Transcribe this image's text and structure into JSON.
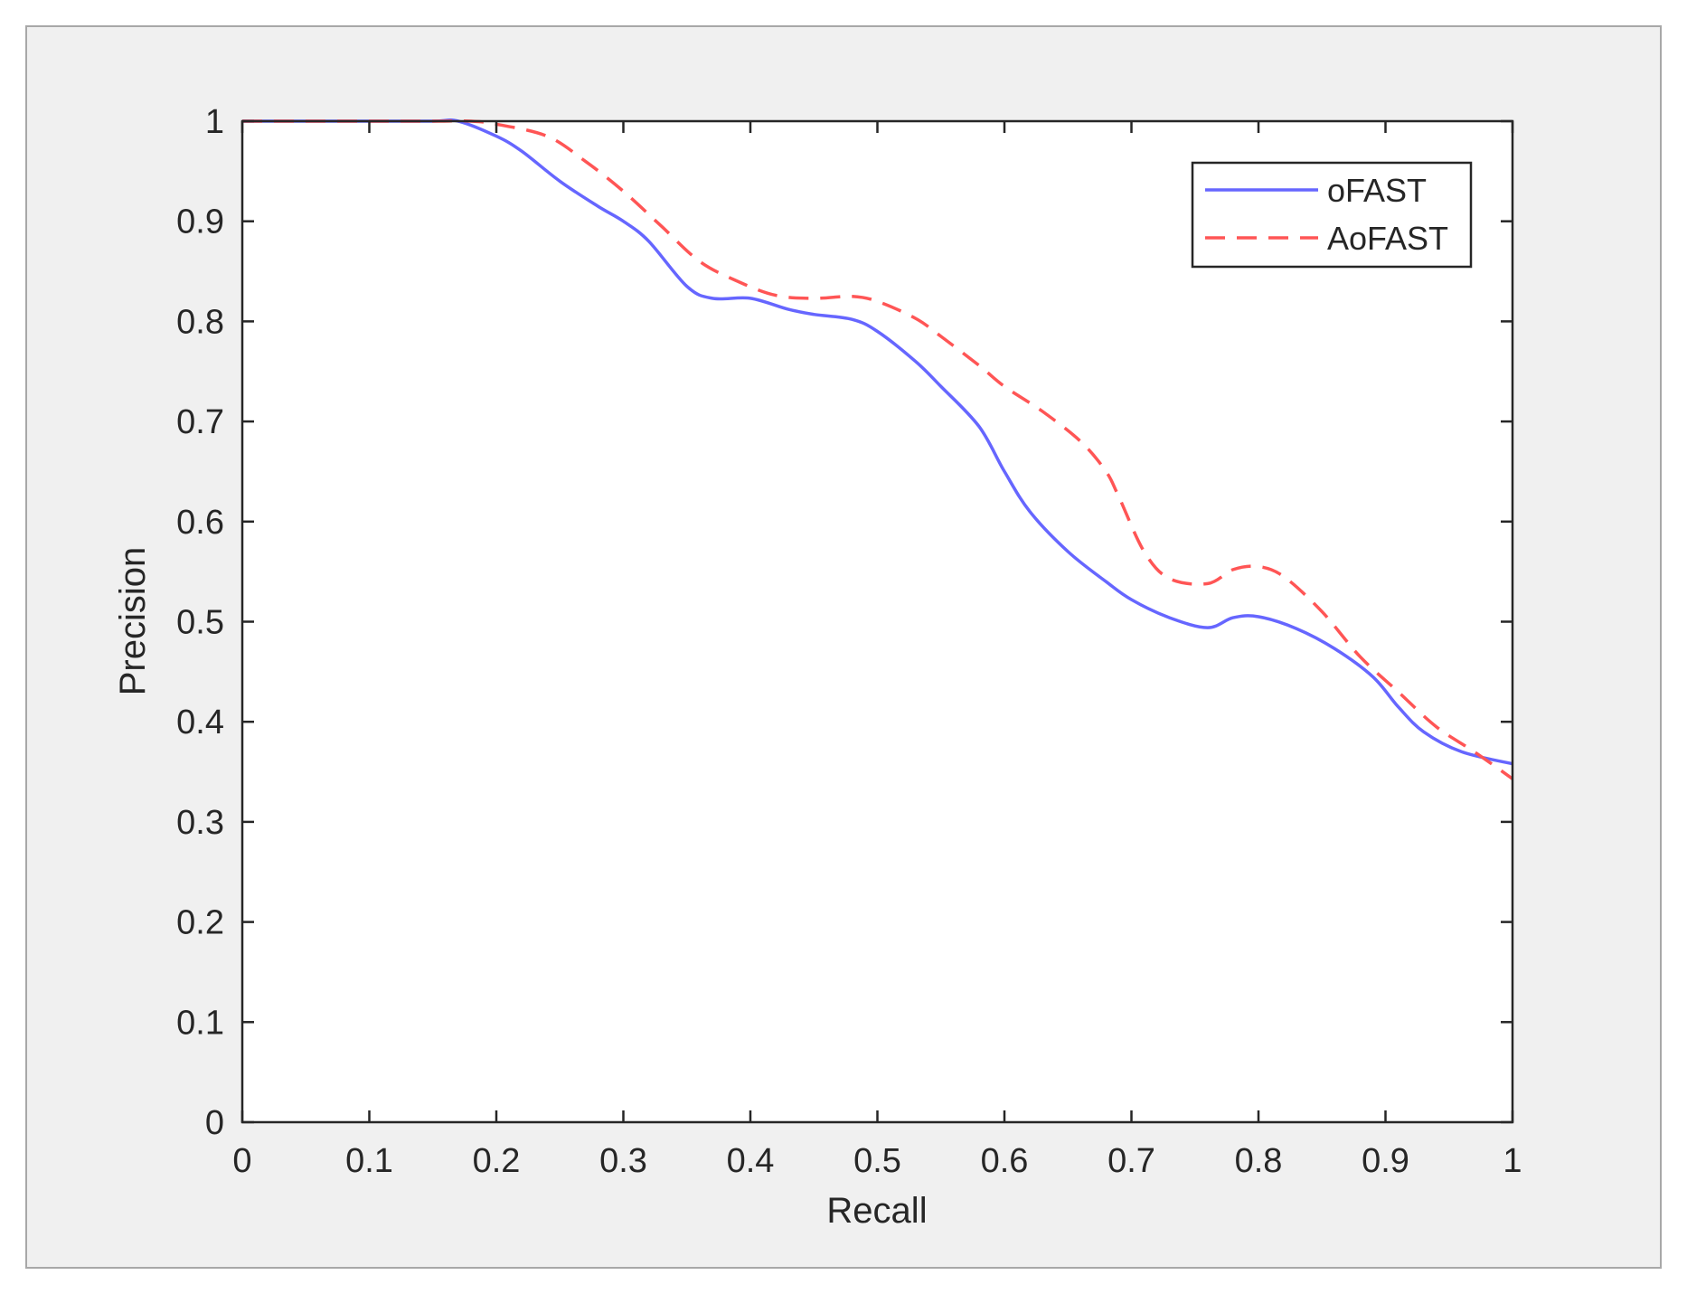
{
  "chart_data": {
    "type": "line",
    "title": "",
    "xlabel": "Recall",
    "ylabel": "Precision",
    "xlim": [
      0,
      1
    ],
    "ylim": [
      0,
      1
    ],
    "xticks": [
      "0",
      "0.1",
      "0.2",
      "0.3",
      "0.4",
      "0.5",
      "0.6",
      "0.7",
      "0.8",
      "0.9",
      "1"
    ],
    "yticks": [
      "0",
      "0.1",
      "0.2",
      "0.3",
      "0.4",
      "0.5",
      "0.6",
      "0.7",
      "0.8",
      "0.9",
      "1"
    ],
    "grid": false,
    "legend_position": "top-right",
    "series": [
      {
        "name": "oFAST",
        "color": "#6666ff",
        "style": "solid",
        "x": [
          0,
          0.05,
          0.1,
          0.15,
          0.17,
          0.2,
          0.22,
          0.25,
          0.28,
          0.3,
          0.32,
          0.35,
          0.37,
          0.4,
          0.43,
          0.45,
          0.48,
          0.5,
          0.53,
          0.55,
          0.58,
          0.6,
          0.62,
          0.65,
          0.68,
          0.7,
          0.73,
          0.76,
          0.78,
          0.8,
          0.83,
          0.86,
          0.89,
          0.91,
          0.93,
          0.96,
          1.0
        ],
        "y": [
          1.0,
          1.0,
          1.0,
          1.0,
          1.0,
          0.985,
          0.97,
          0.94,
          0.915,
          0.9,
          0.88,
          0.835,
          0.823,
          0.823,
          0.812,
          0.807,
          0.802,
          0.79,
          0.76,
          0.735,
          0.695,
          0.65,
          0.61,
          0.57,
          0.54,
          0.522,
          0.504,
          0.494,
          0.504,
          0.505,
          0.493,
          0.473,
          0.445,
          0.415,
          0.39,
          0.37,
          0.358
        ]
      },
      {
        "name": "AoFAST",
        "color": "#ff5555",
        "style": "dashed",
        "x": [
          0,
          0.05,
          0.1,
          0.15,
          0.18,
          0.2,
          0.24,
          0.27,
          0.3,
          0.33,
          0.36,
          0.39,
          0.42,
          0.45,
          0.48,
          0.5,
          0.53,
          0.55,
          0.58,
          0.6,
          0.63,
          0.66,
          0.68,
          0.69,
          0.71,
          0.73,
          0.76,
          0.78,
          0.8,
          0.82,
          0.85,
          0.88,
          0.91,
          0.94,
          0.97,
          1.0
        ],
        "y": [
          1.0,
          1.0,
          1.0,
          1.0,
          1.0,
          0.997,
          0.985,
          0.96,
          0.93,
          0.895,
          0.86,
          0.84,
          0.826,
          0.823,
          0.825,
          0.82,
          0.803,
          0.785,
          0.756,
          0.735,
          0.71,
          0.68,
          0.65,
          0.625,
          0.57,
          0.543,
          0.538,
          0.552,
          0.555,
          0.545,
          0.51,
          0.465,
          0.43,
          0.395,
          0.37,
          0.343
        ]
      }
    ]
  }
}
